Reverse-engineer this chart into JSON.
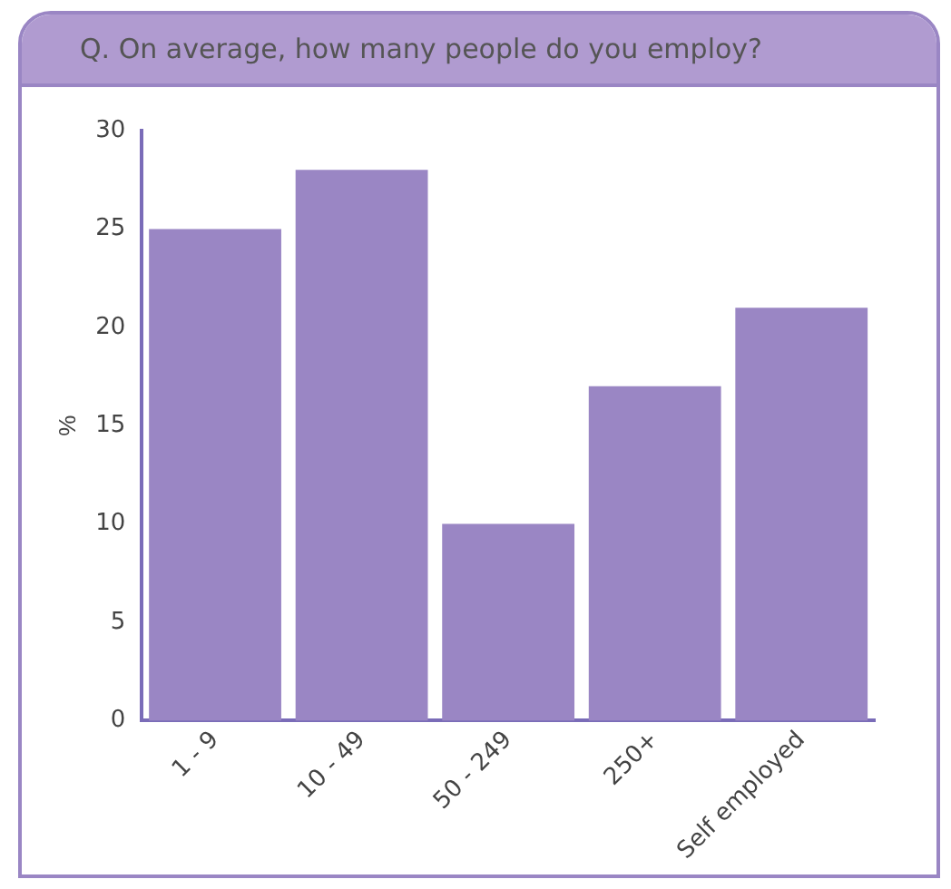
{
  "chart_data": {
    "type": "bar",
    "title": "Q.  On average, how many people do you employ?",
    "ylabel": "%",
    "categories": [
      "1 - 9",
      "10 - 49",
      "50 - 249",
      "250+",
      "Self employed"
    ],
    "values": [
      25,
      28,
      10,
      17,
      21
    ],
    "color": "#9a86c4",
    "ylim": [
      0,
      30
    ],
    "yticks": [
      0,
      5,
      10,
      15,
      20,
      25,
      30
    ],
    "grid": false,
    "legend": false
  }
}
